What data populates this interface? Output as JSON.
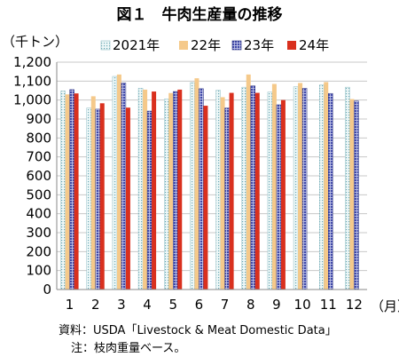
{
  "chart_data": {
    "type": "bar",
    "title": "図１　牛肉生産量の推移",
    "ylabel": "（千トン）",
    "xlabel": "（月）",
    "ylim": [
      0,
      1200
    ],
    "ytick_step": 100,
    "grid": true,
    "legend_position": "top",
    "categories": [
      "1",
      "2",
      "3",
      "4",
      "5",
      "6",
      "7",
      "8",
      "9",
      "10",
      "11",
      "12"
    ],
    "series": [
      {
        "name": "2021年",
        "color": "#dff0f2",
        "pattern": "dots",
        "values": [
          1048,
          958,
          1125,
          1062,
          1005,
          1092,
          1052,
          1068,
          1042,
          1070,
          1080,
          1068
        ]
      },
      {
        "name": "22年",
        "color": "#f5c98a",
        "pattern": "solid",
        "values": [
          1030,
          1020,
          1135,
          1055,
          1037,
          1115,
          1015,
          1135,
          1085,
          1090,
          1095,
          1005
        ]
      },
      {
        "name": "23年",
        "color": "#3f48a8",
        "pattern": "grid",
        "values": [
          1055,
          952,
          1090,
          942,
          1045,
          1060,
          958,
          1075,
          975,
          1062,
          1035,
          995
        ]
      },
      {
        "name": "24年",
        "color": "#d9301e",
        "pattern": "solid",
        "values": [
          1035,
          983,
          960,
          1045,
          1055,
          970,
          1038,
          1038,
          1000,
          null,
          null,
          null
        ]
      }
    ]
  },
  "source_note": "資料：USDA「Livestock & Meat Domestic Data」",
  "note": "注：枝肉重量ベース。"
}
